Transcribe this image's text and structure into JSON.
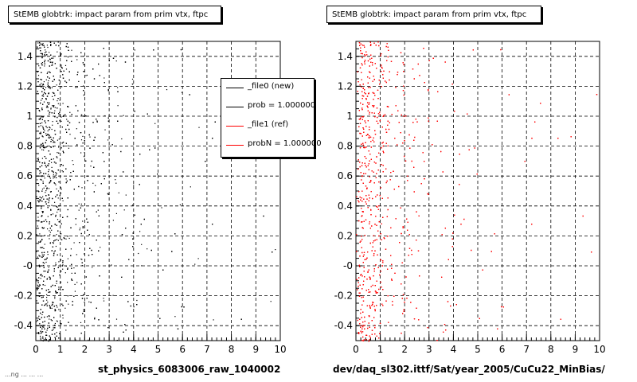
{
  "chart_data": [
    {
      "type": "scatter",
      "title": "StEMB globtrk: impact param from prim vtx, ftpc",
      "xlabel": "st_physics_6083006_raw_1040002",
      "ylabel": "",
      "xlim": [
        0,
        10
      ],
      "ylim": [
        -0.5,
        1.5
      ],
      "x_ticks": [
        "0",
        "1",
        "2",
        "3",
        "4",
        "5",
        "6",
        "7",
        "8",
        "9",
        "10"
      ],
      "y_ticks": [
        "-0.4",
        "-0.2",
        "-0",
        "0.2",
        "0.4",
        "0.6",
        "0.8",
        "1",
        "1.2",
        "1.4"
      ],
      "grid": true,
      "marker_color": "#000000",
      "legend": {
        "position": "top-right",
        "entries": [
          {
            "label": "_file0 (new)",
            "color": "#000000"
          },
          {
            "label": "prob = 1.000000",
            "color": "#000000"
          },
          {
            "label": "_file1 (ref)",
            "color": "#ff0000"
          },
          {
            "label": "probN = 1.000000",
            "color": "#ff0000"
          }
        ]
      },
      "density": {
        "x_profile": [
          [
            0.0,
            0.3
          ],
          [
            0.2,
            1.0
          ],
          [
            0.5,
            0.95
          ],
          [
            0.8,
            0.7
          ],
          [
            1.2,
            0.3
          ],
          [
            1.6,
            0.18
          ],
          [
            2.0,
            0.14
          ],
          [
            2.5,
            0.09
          ],
          [
            3.0,
            0.06
          ],
          [
            4.0,
            0.035
          ],
          [
            5.0,
            0.02
          ],
          [
            6.0,
            0.012
          ],
          [
            8.0,
            0.006
          ],
          [
            10.0,
            0.004
          ]
        ],
        "y_range": [
          -0.5,
          1.5
        ],
        "approx_points": 2600
      }
    },
    {
      "type": "scatter",
      "title": "StEMB globtrk: impact param from prim vtx, ftpc",
      "xlabel": "dev/daq_sl302.ittf/Sat/year_2005/CuCu22_MinBias/",
      "ylabel": "",
      "xlim": [
        0,
        10
      ],
      "ylim": [
        -0.5,
        1.5
      ],
      "x_ticks": [
        "0",
        "1",
        "2",
        "3",
        "4",
        "5",
        "6",
        "7",
        "8",
        "9",
        "10"
      ],
      "y_ticks": [
        "-0.4",
        "-0.2",
        "-0",
        "0.2",
        "0.4",
        "0.6",
        "0.8",
        "1",
        "1.2",
        "1.4"
      ],
      "grid": true,
      "marker_color": "#ff0000",
      "density": {
        "x_profile": [
          [
            0.0,
            0.3
          ],
          [
            0.2,
            1.0
          ],
          [
            0.5,
            0.95
          ],
          [
            0.8,
            0.7
          ],
          [
            1.2,
            0.3
          ],
          [
            1.6,
            0.18
          ],
          [
            2.0,
            0.14
          ],
          [
            2.5,
            0.09
          ],
          [
            3.0,
            0.06
          ],
          [
            4.0,
            0.035
          ],
          [
            5.0,
            0.02
          ],
          [
            6.0,
            0.012
          ],
          [
            8.0,
            0.006
          ],
          [
            10.0,
            0.004
          ]
        ],
        "y_range": [
          -0.5,
          1.5
        ],
        "approx_points": 2600
      }
    }
  ],
  "footer": "...ng ... ... ...",
  "colors": {
    "frame": "#000000",
    "grid": "#000000",
    "new": "#000000",
    "ref": "#ff0000"
  }
}
